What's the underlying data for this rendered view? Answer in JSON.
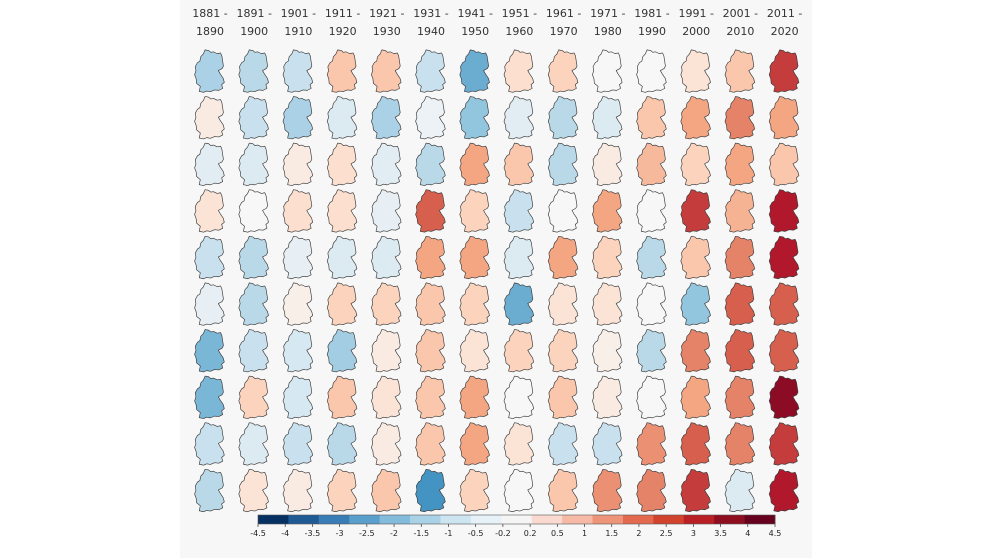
{
  "chart_data": {
    "type": "heatmap",
    "title": "",
    "decade_labels": [
      [
        "1881 -",
        "1890"
      ],
      [
        "1891 -",
        "1900"
      ],
      [
        "1901 -",
        "1910"
      ],
      [
        "1911 -",
        "1920"
      ],
      [
        "1921 -",
        "1930"
      ],
      [
        "1931 -",
        "1940"
      ],
      [
        "1941 -",
        "1950"
      ],
      [
        "1951 -",
        "1960"
      ],
      [
        "1961 -",
        "1970"
      ],
      [
        "1971 -",
        "1980"
      ],
      [
        "1981 -",
        "1990"
      ],
      [
        "1991 -",
        "2000"
      ],
      [
        "2001 -",
        "2010"
      ],
      [
        "2011 -",
        "2020"
      ]
    ],
    "value_range": [
      -4.5,
      4.5
    ],
    "colorbar_ticks": [
      "-4.5",
      "-4",
      "-3.5",
      "-3",
      "-2.5",
      "-2",
      "-1.5",
      "-1",
      "-0.5",
      "-0.2",
      "0.2",
      "0.5",
      "1",
      "1.5",
      "2",
      "2.5",
      "3",
      "3.5",
      "4",
      "4.5"
    ],
    "colorbar_colors": [
      "#053061",
      "#1f5a95",
      "#3a7db6",
      "#5a9ecb",
      "#83bbda",
      "#a9d2e7",
      "#cde5f1",
      "#e6f2f8",
      "#f5f5f5",
      "#fadad0",
      "#f5b9a6",
      "#ee9579",
      "#e36a4f",
      "#d2432e",
      "#b92025",
      "#8e0d1e",
      "#67001f"
    ],
    "values": [
      [
        -1.2,
        -1.0,
        -0.8,
        1.0,
        1.0,
        -0.8,
        -2.0,
        0.6,
        0.8,
        0.0,
        0.0,
        0.5,
        1.0,
        3.0
      ],
      [
        0.3,
        -0.8,
        -1.2,
        -0.5,
        -1.2,
        -0.2,
        -1.5,
        -0.4,
        -1.0,
        -0.5,
        1.0,
        1.5,
        2.0,
        1.5
      ],
      [
        -0.4,
        -0.5,
        0.3,
        0.6,
        -0.4,
        -1.0,
        1.5,
        1.0,
        -1.0,
        0.3,
        1.2,
        0.8,
        1.5,
        1.0
      ],
      [
        0.5,
        0.0,
        0.6,
        0.6,
        -0.3,
        2.5,
        0.8,
        -0.8,
        0.0,
        1.5,
        0.0,
        3.0,
        1.3,
        3.5
      ],
      [
        -0.8,
        -1.0,
        -0.3,
        -0.5,
        -0.5,
        1.5,
        1.5,
        -0.5,
        1.5,
        0.8,
        -1.0,
        1.0,
        2.0,
        3.5
      ],
      [
        -0.3,
        -1.0,
        0.2,
        0.8,
        0.8,
        1.0,
        0.8,
        -2.0,
        0.5,
        0.5,
        0.0,
        -1.5,
        2.5,
        2.5
      ],
      [
        -1.8,
        -0.8,
        -0.6,
        -1.3,
        0.3,
        1.0,
        0.5,
        0.8,
        0.8,
        0.2,
        -1.0,
        2.0,
        2.5,
        2.5
      ],
      [
        -1.8,
        0.8,
        -0.6,
        1.0,
        0.5,
        1.0,
        1.5,
        0.0,
        1.0,
        0.3,
        0.0,
        1.5,
        2.0,
        4.0
      ],
      [
        -0.8,
        -0.5,
        -0.8,
        -1.0,
        0.3,
        1.0,
        1.5,
        0.5,
        -0.8,
        -0.8,
        1.8,
        2.5,
        2.0,
        3.0
      ],
      [
        -1.0,
        0.5,
        0.3,
        0.8,
        1.0,
        -2.5,
        0.8,
        0.0,
        1.0,
        1.8,
        2.0,
        3.0,
        -0.5,
        3.5
      ]
    ]
  }
}
